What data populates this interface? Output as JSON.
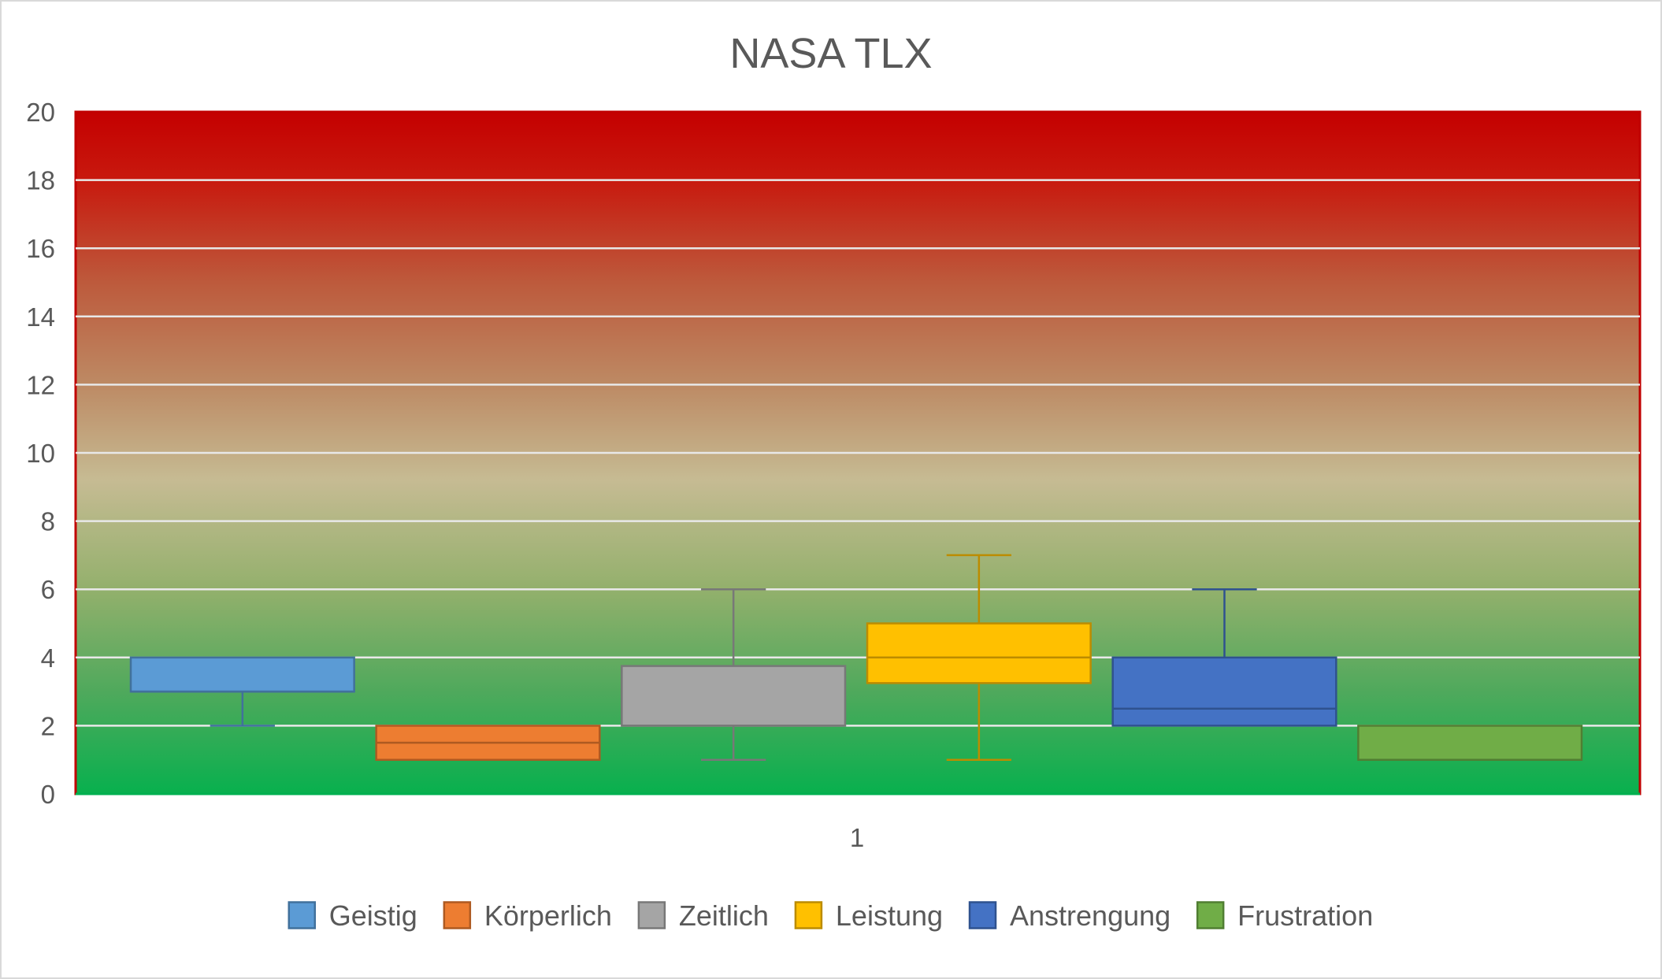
{
  "chart_data": {
    "type": "box",
    "title": "NASA TLX",
    "categories": [
      "1"
    ],
    "ylim": [
      0,
      20
    ],
    "ytick_step": 2,
    "grid": true,
    "legend_position": "bottom",
    "plot_background": "vertical gradient green (0) to tan (8-10) to red (20)",
    "series": [
      {
        "name": "Geistig",
        "color": "#5b9bd5",
        "stroke": "#41719c",
        "min": 2,
        "q1": 3,
        "median": 3,
        "q3": 4,
        "max": 4
      },
      {
        "name": "Körperlich",
        "color": "#ed7d31",
        "stroke": "#ae5a21",
        "min": 1,
        "q1": 1,
        "median": 1.5,
        "q3": 2,
        "max": 2
      },
      {
        "name": "Zeitlich",
        "color": "#a5a5a5",
        "stroke": "#787878",
        "min": 1,
        "q1": 2,
        "median": 2,
        "q3": 3.75,
        "max": 6
      },
      {
        "name": "Leistung",
        "color": "#ffc000",
        "stroke": "#bc8c00",
        "min": 1,
        "q1": 3.25,
        "median": 4,
        "q3": 5,
        "max": 7
      },
      {
        "name": "Anstrengung",
        "color": "#4472c4",
        "stroke": "#2f528f",
        "min": 2,
        "q1": 2,
        "median": 2.5,
        "q3": 4,
        "max": 6
      },
      {
        "name": "Frustration",
        "color": "#70ad47",
        "stroke": "#507e32",
        "min": 1,
        "q1": 1,
        "median": 1,
        "q3": 2,
        "max": 2
      }
    ]
  }
}
